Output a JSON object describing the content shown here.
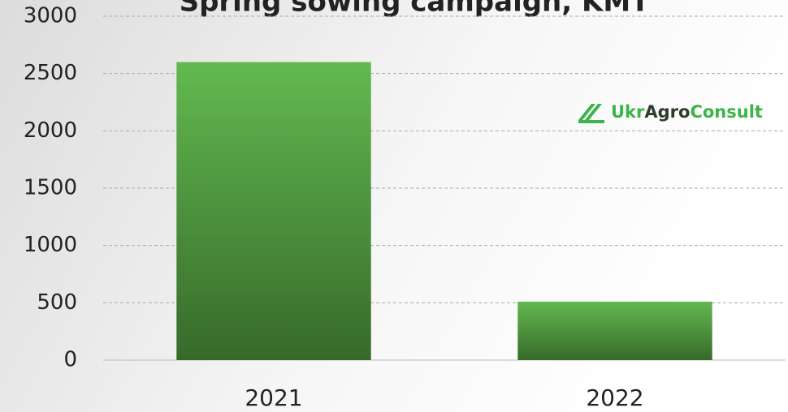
{
  "chart_data": {
    "type": "bar",
    "title": "Spring sowing campaign, KMT",
    "categories": [
      "2021",
      "2022"
    ],
    "values": [
      2600,
      510
    ],
    "color": "#4f9a40",
    "ylim": [
      0,
      3000
    ],
    "yticks": [
      0,
      500,
      1000,
      1500,
      2000,
      2500,
      3000
    ],
    "grid": true
  },
  "logo": {
    "parts": [
      "Ukr",
      "Agro",
      "Consult"
    ]
  }
}
